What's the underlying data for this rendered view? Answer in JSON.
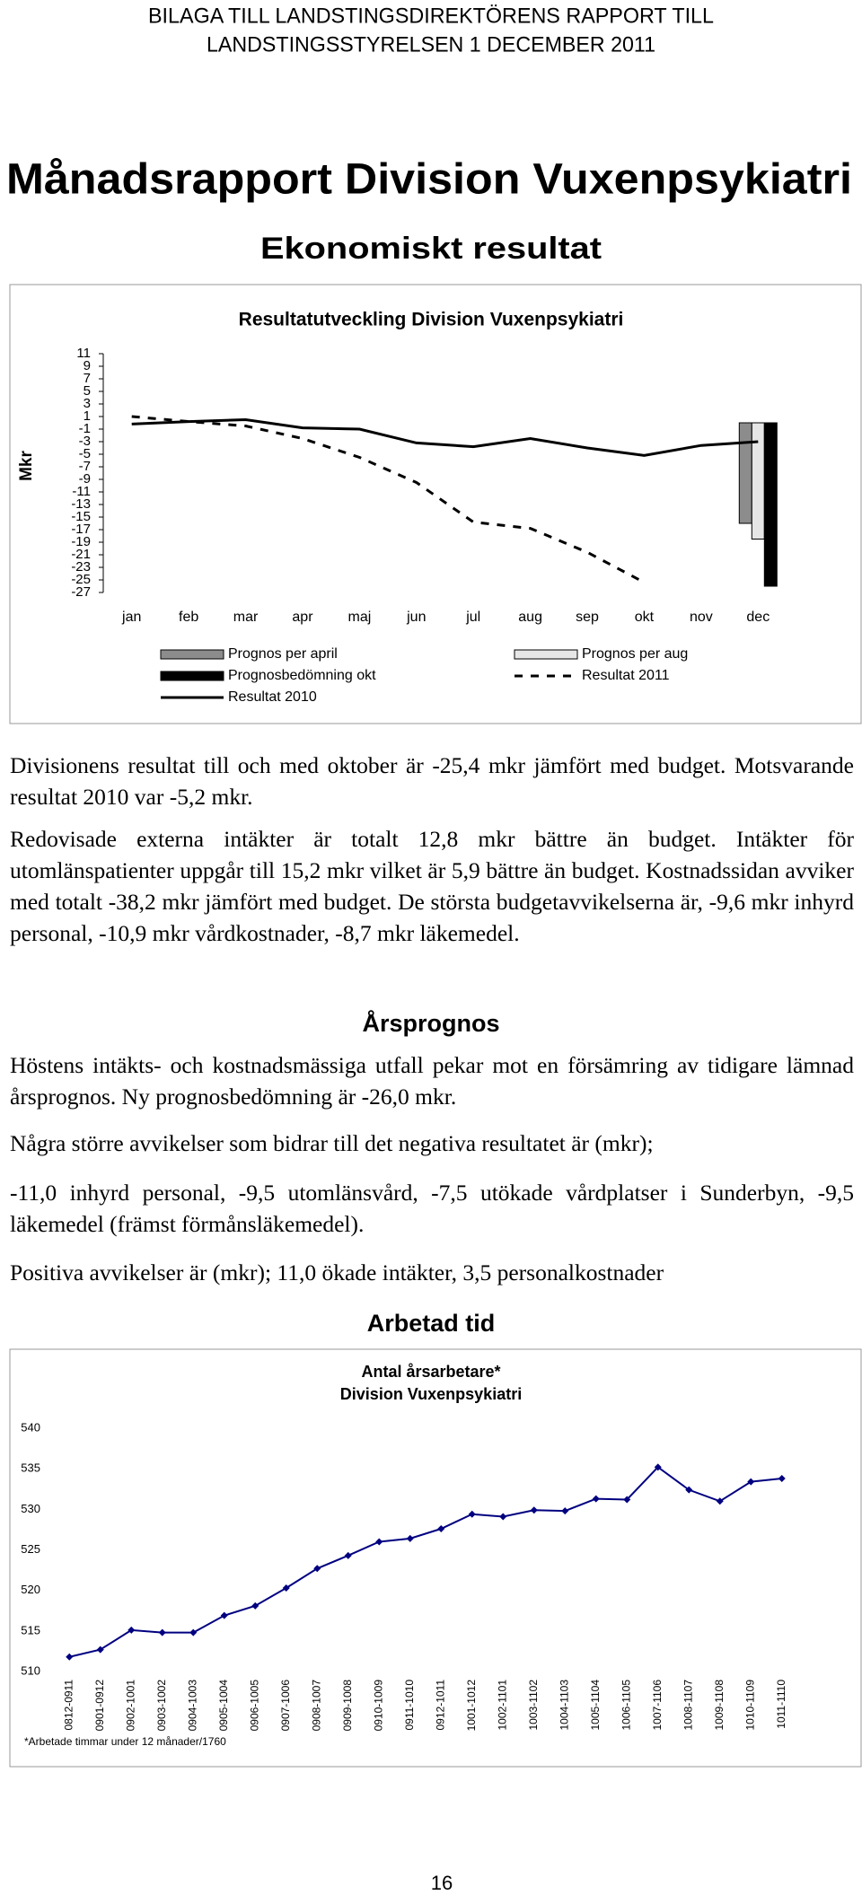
{
  "header": {
    "lines": [
      "BILAGA TILL LANDSTINGSDIREKTÖRENS RAPPORT TILL",
      "LANDSTINGSSTYRELSEN 1 DECEMBER 2011"
    ]
  },
  "title": "Månadsrapport Division Vuxenpsykiatri",
  "heading_1": "Ekonomiskt resultat",
  "paragraphs_1": [
    "Divisionens resultat till och med oktober är -25,4 mkr jämfört med budget. Motsvarande resultat 2010 var -5,2 mkr.",
    "Redovisade externa intäkter är totalt 12,8 mkr bättre än budget. Intäkter för utomlänspatienter uppgår till 15,2 mkr vilket är 5,9 bättre än budget. Kostnadssidan avviker med totalt -38,2 mkr jämfört med budget. De största budgetavvikelserna är, -9,6 mkr inhyrd personal, -10,9 mkr vårdkostnader, -8,7 mkr läkemedel."
  ],
  "heading_2": "Årsprognos",
  "paragraphs_2": [
    "Höstens intäkts- och kostnadsmässiga utfall pekar mot en försämring av tidigare lämnad årsprognos. Ny prognosbedömning är -26,0 mkr.",
    "Några större avvikelser som bidrar till det negativa resultatet är (mkr);",
    "-11,0 inhyrd personal, -9,5 utomlänsvård, -7,5 utökade vårdplatser i Sunderbyn, -9,5 läkemedel (främst förmånsläkemedel).",
    "Positiva avvikelser är (mkr); 11,0 ökade intäkter, 3,5 personalkostnader"
  ],
  "heading_3": "Arbetad tid",
  "page_number": "16",
  "chart_data": [
    {
      "type": "line",
      "title": "Resultatutveckling Division Vuxenpsykiatri",
      "y_label": "Mkr",
      "categories": [
        "jan",
        "feb",
        "mar",
        "apr",
        "maj",
        "jun",
        "jul",
        "aug",
        "sep",
        "okt",
        "nov",
        "dec"
      ],
      "ylim": [
        -27,
        11
      ],
      "yticks": [
        11,
        9,
        7,
        5,
        3,
        1,
        -1,
        -3,
        -5,
        -7,
        -9,
        -11,
        -13,
        -15,
        -17,
        -19,
        -21,
        -23,
        -25,
        -27
      ],
      "series": [
        {
          "name": "Prognos per april",
          "kind": "bar",
          "color": "#8c8c8c",
          "values": [
            null,
            null,
            null,
            null,
            null,
            null,
            null,
            null,
            null,
            null,
            null,
            -16
          ]
        },
        {
          "name": "Prognos per aug",
          "kind": "bar",
          "color": "#e6e6e6",
          "values": [
            null,
            null,
            null,
            null,
            null,
            null,
            null,
            null,
            null,
            null,
            null,
            -18.5
          ]
        },
        {
          "name": "Prognosbedömning okt",
          "kind": "bar",
          "color": "#000000",
          "values": [
            null,
            null,
            null,
            null,
            null,
            null,
            null,
            null,
            null,
            null,
            null,
            -26
          ]
        },
        {
          "name": "Resultat 2011",
          "kind": "line",
          "style": "dashed",
          "color": "#000000",
          "values": [
            1,
            0.2,
            -0.5,
            -2.5,
            -5.5,
            -9.5,
            -15.8,
            -16.8,
            -20.6,
            -25.4,
            null,
            null
          ]
        },
        {
          "name": "Resultat 2010",
          "kind": "line",
          "style": "solid",
          "color": "#000000",
          "values": [
            -0.2,
            0.2,
            0.5,
            -0.8,
            -1,
            -3.2,
            -3.8,
            -2.5,
            -4,
            -5.2,
            -3.6,
            -3
          ]
        }
      ]
    },
    {
      "type": "line",
      "title": "Antal årsarbetare*",
      "subtitle": "Division Vuxenpsykiatri",
      "note": "*Arbetade timmar under 12 månader/1760",
      "categories": [
        "0812-0911",
        "0901-0912",
        "0902-1001",
        "0903-1002",
        "0904-1003",
        "0905-1004",
        "0906-1005",
        "0907-1006",
        "0908-1007",
        "0909-1008",
        "0910-1009",
        "0911-1010",
        "0912-1011",
        "1001-1012",
        "1002-1101",
        "1003-1102",
        "1004-1103",
        "1005-1104",
        "1006-1105",
        "1007-1106",
        "1008-1107",
        "1009-1108",
        "1010-1109",
        "1011-1110"
      ],
      "values": [
        511.8,
        512.7,
        515.1,
        514.8,
        514.8,
        516.9,
        518.1,
        520.3,
        522.7,
        524.3,
        526.0,
        526.4,
        527.6,
        529.4,
        529.1,
        529.9,
        529.8,
        531.3,
        531.2,
        535.2,
        532.4,
        531.0,
        533.4,
        533.8
      ],
      "color": "#000080",
      "marker": "diamond",
      "ylim": [
        510,
        540
      ],
      "yticks": [
        510,
        515,
        520,
        525,
        530,
        535,
        540
      ]
    }
  ]
}
